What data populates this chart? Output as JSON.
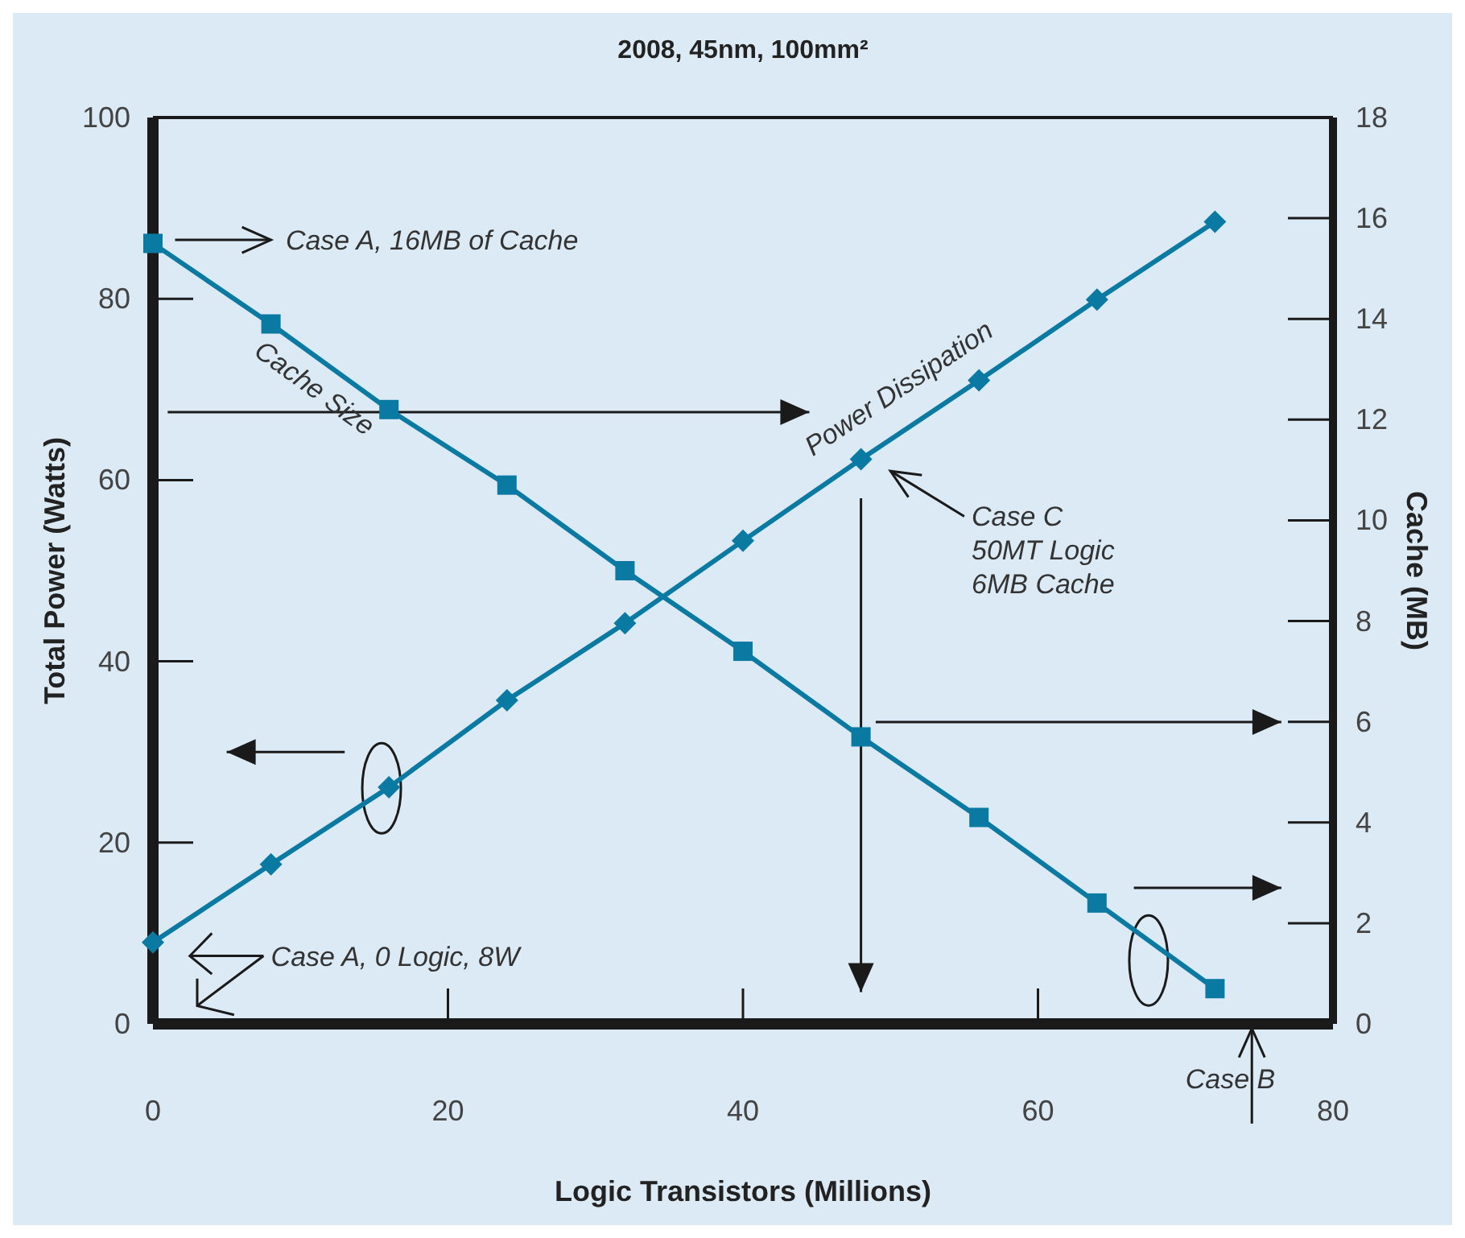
{
  "chart_data": {
    "type": "line",
    "title": "2008, 45nm, 100mm²",
    "xlabel": "Logic Transistors (Millions)",
    "ylabel": "Total Power (Watts)",
    "y2label": "Cache (MB)",
    "x": [
      0,
      8,
      16,
      24,
      32,
      40,
      48,
      56,
      64,
      72
    ],
    "series": [
      {
        "name": "Power Dissipation",
        "color": "#0b7aa3",
        "marker": "diamond",
        "values": [
          9,
          17.6,
          26.1,
          35.7,
          44.2,
          53.3,
          62.3,
          71,
          79.9,
          88.5
        ]
      },
      {
        "name": "Cache Size",
        "color": "#0b7aa3",
        "marker": "square",
        "axis": "y2",
        "values": [
          15.5,
          13.9,
          12.2,
          10.7,
          9.0,
          7.4,
          5.7,
          4.1,
          2.4,
          0.7
        ]
      }
    ],
    "xlim": [
      0,
      80
    ],
    "xticks": [
      0,
      20,
      40,
      60,
      80
    ],
    "ylim": [
      0,
      100
    ],
    "yticks": [
      0,
      20,
      40,
      60,
      80,
      100
    ],
    "y2lim": [
      0,
      18
    ],
    "y2ticks": [
      0,
      2,
      4,
      6,
      8,
      10,
      12,
      14,
      16,
      18
    ],
    "grid": false,
    "line_style": "solid",
    "annotations": [
      "Case A, 16MB of Cache",
      "Case A, 0 Logic, 8W",
      "Case C\n50MT Logic\n6MB Cache",
      "Case B"
    ]
  }
}
